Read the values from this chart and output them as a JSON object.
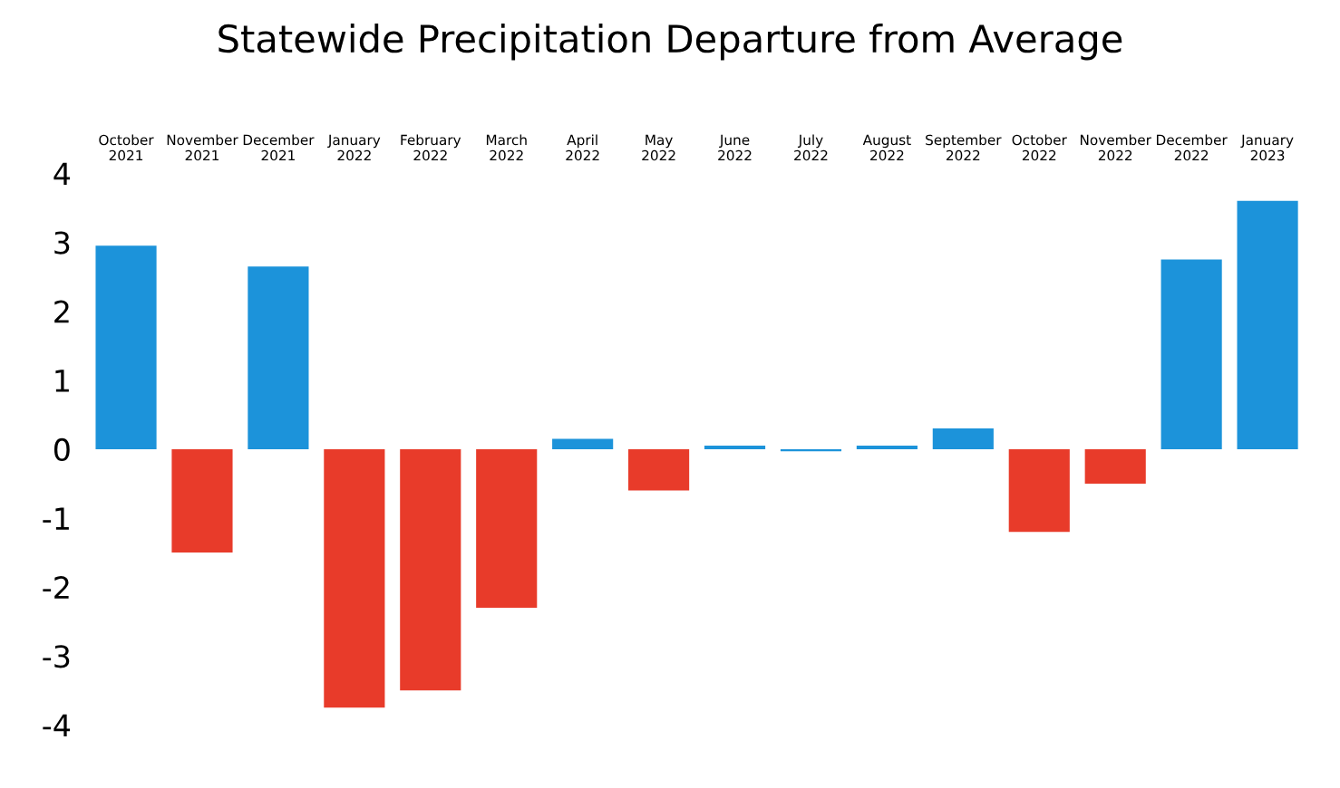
{
  "chart_data": {
    "type": "bar",
    "title": "Statewide Precipitation Departure from Average",
    "categories": [
      "October\n2021",
      "November\n2021",
      "December\n2021",
      "January\n2022",
      "February\n2022",
      "March\n2022",
      "April\n2022",
      "May\n2022",
      "June\n2022",
      "July\n2022",
      "August\n2022",
      "September\n2022",
      "October\n2022",
      "November\n2022",
      "December\n2022",
      "January\n2023"
    ],
    "values": [
      2.95,
      -1.5,
      2.65,
      -3.75,
      -3.5,
      -2.3,
      0.15,
      -0.6,
      0.05,
      -0.03,
      0.05,
      0.3,
      -1.2,
      -0.5,
      2.75,
      3.6
    ],
    "colors": [
      "#1c93da",
      "#e83b2a",
      "#1c93da",
      "#e83b2a",
      "#e83b2a",
      "#e83b2a",
      "#1c93da",
      "#e83b2a",
      "#1c93da",
      "#1c93da",
      "#1c93da",
      "#1c93da",
      "#e83b2a",
      "#e83b2a",
      "#1c93da",
      "#1c93da"
    ],
    "ylim": [
      -4,
      4
    ],
    "yticks": [
      -4,
      -3,
      -2,
      -1,
      0,
      1,
      2,
      3,
      4
    ],
    "grid": false
  }
}
